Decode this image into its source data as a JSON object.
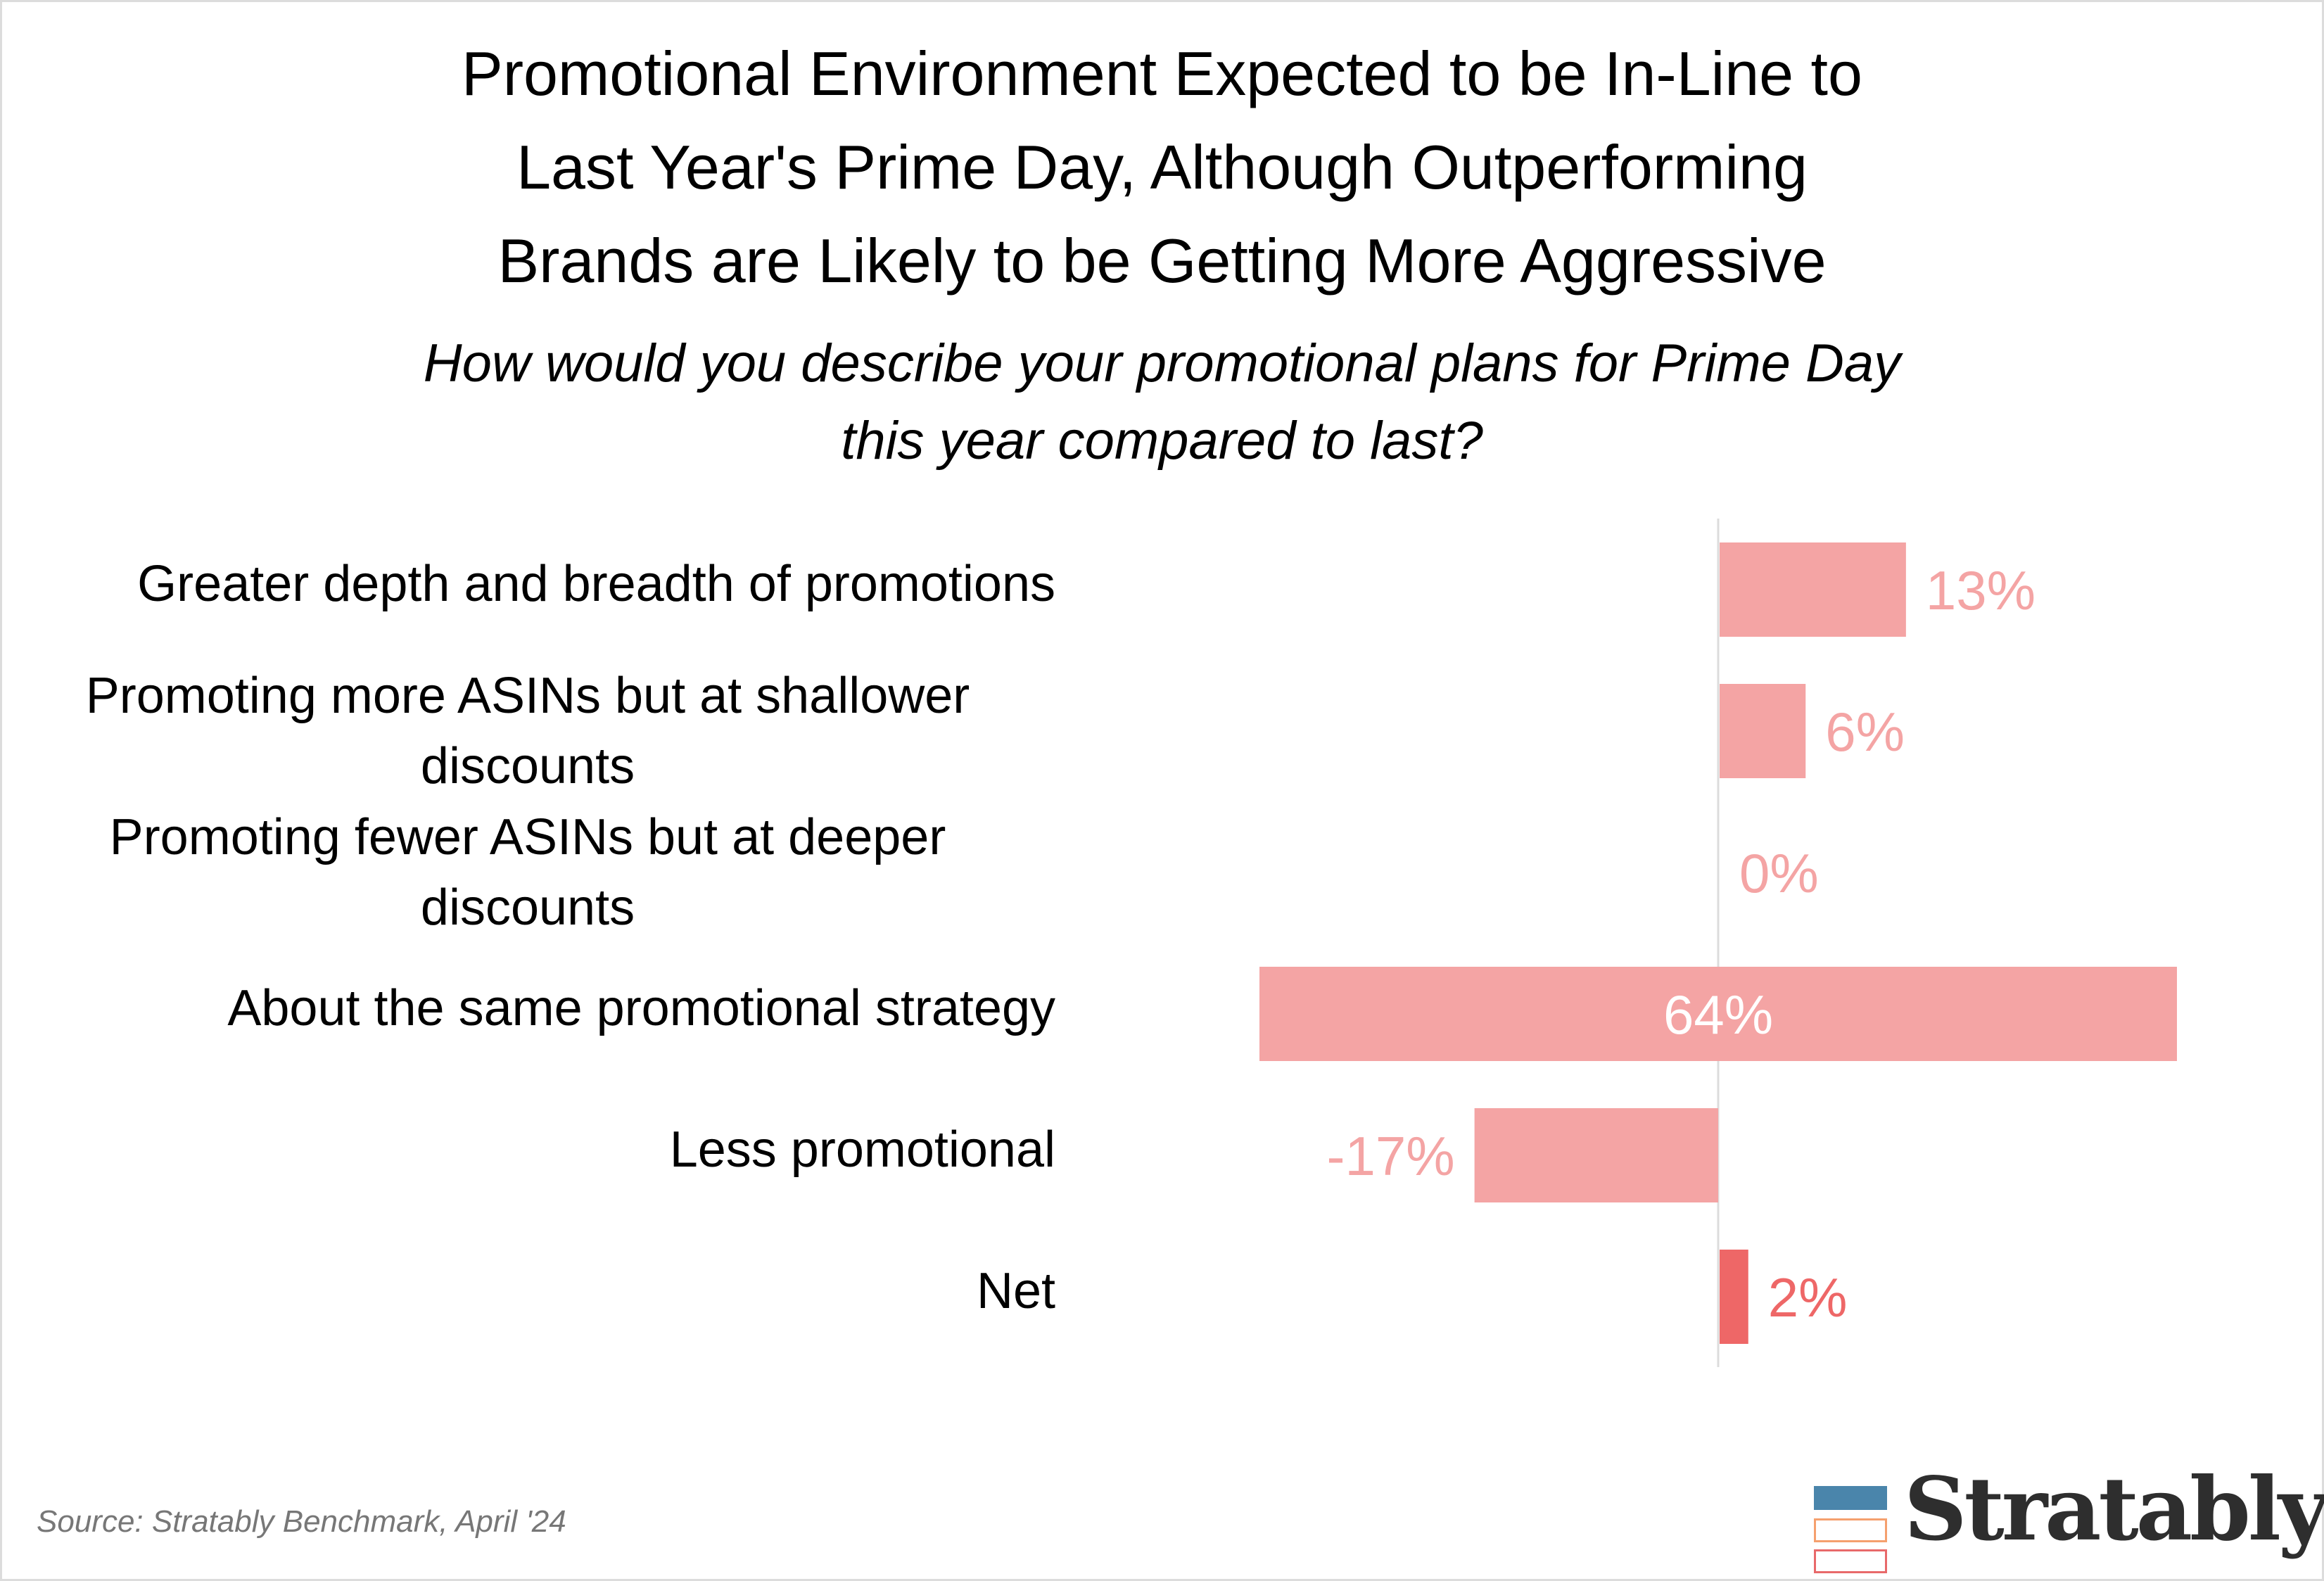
{
  "colors": {
    "bar": "#f4a4a4",
    "bar_net": "#ee6767",
    "label_on_bar": "#ffffff",
    "axis": "#dcdcdc",
    "source_text": "#777777",
    "logo_blue": "#4a85ab",
    "logo_orange": "#f5a06e",
    "logo_red": "#e8696a",
    "logo_text": "#2e2e2e"
  },
  "header": {
    "title_lines": [
      "Promotional Environment Expected to be In-Line to",
      "Last Year's Prime Day, Although Outperforming",
      "Brands are Likely to be Getting More Aggressive"
    ],
    "subtitle_lines": [
      "How would you describe your promotional plans for Prime Day",
      "this year compared to last?"
    ]
  },
  "chart_data": {
    "type": "bar",
    "orientation": "horizontal",
    "title": "Promotional Environment Expected to be In-Line to Last Year's Prime Day, Although Outperforming Brands are Likely to be Getting More Aggressive",
    "subtitle": "How would you describe your promotional plans for Prime Day this year compared to last?",
    "xlabel": "",
    "ylabel": "",
    "grid": false,
    "legend": "none",
    "xlim": [
      -32,
      32
    ],
    "categories": [
      [
        "Greater depth and breadth of promotions"
      ],
      [
        "Promoting more ASINs but at shallower",
        "discounts"
      ],
      [
        "Promoting fewer ASINs but at deeper",
        "discounts"
      ],
      [
        "About the same promotional strategy"
      ],
      [
        "Less promotional"
      ],
      [
        "Net"
      ]
    ],
    "values": [
      13,
      6,
      0,
      64,
      -17,
      2
    ],
    "bar_mode": [
      "positive",
      "positive",
      "positive",
      "centered",
      "negative",
      "positive"
    ],
    "labels": [
      "13%",
      "6%",
      "0%",
      "64%",
      "-17%",
      "2%"
    ],
    "highlight": [
      false,
      false,
      false,
      false,
      false,
      true
    ]
  },
  "footer": {
    "source": "Source: Stratably Benchmark, April '24",
    "logo_text": "Stratably"
  }
}
